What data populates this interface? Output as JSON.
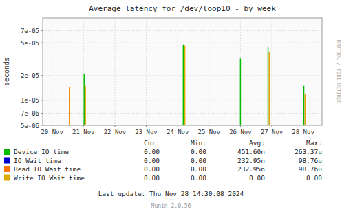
{
  "chart_data": {
    "type": "stem",
    "title": "Average latency for /dev/loop10 - by week",
    "ylabel": "seconds",
    "log": "y",
    "grid": true,
    "xlim": [
      -0.3,
      8.6
    ],
    "xticks": [
      {
        "value": 0,
        "label": "20 Nov"
      },
      {
        "value": 1,
        "label": "21 Nov"
      },
      {
        "value": 2,
        "label": "22 Nov"
      },
      {
        "value": 3,
        "label": "23 Nov"
      },
      {
        "value": 4,
        "label": "24 Nov"
      },
      {
        "value": 5,
        "label": "25 Nov"
      },
      {
        "value": 6,
        "label": "26 Nov"
      },
      {
        "value": 7,
        "label": "27 Nov"
      },
      {
        "value": 8,
        "label": "28 Nov"
      }
    ],
    "ylim": [
      5e-06,
      0.0001
    ],
    "yticks": [
      {
        "value": 5e-06,
        "label": "5e-06"
      },
      {
        "value": 7e-06,
        "label": "7e-06"
      },
      {
        "value": 1e-05,
        "label": "1e-05"
      },
      {
        "value": 2e-05,
        "label": "2e-05"
      },
      {
        "value": 5e-05,
        "label": "5e-05"
      },
      {
        "value": 7e-05,
        "label": "7e-05"
      }
    ],
    "stats_headers": [
      "Cur:",
      "Min:",
      "Avg:",
      "Max:"
    ],
    "series": [
      {
        "name": "Device IO time",
        "color": "#00bb00",
        "x": [
          1.02,
          4.18,
          6.0,
          6.88,
          8.02
        ],
        "values": [
          2.1e-05,
          4.75e-05,
          3.2e-05,
          4.4e-05,
          1.5e-05
        ],
        "stats": [
          "0.00",
          "0.00",
          "451.60n",
          "263.37u"
        ]
      },
      {
        "name": "IO Wait time",
        "color": "#0000cc",
        "x": [],
        "values": [],
        "stats": [
          "0.00",
          "0.00",
          "232.95n",
          "98.76u"
        ]
      },
      {
        "name": "Read IO Wait time",
        "color": "#ff7700",
        "x": [
          0.55,
          1.05,
          4.22,
          6.92,
          8.06
        ],
        "values": [
          1.45e-05,
          1.5e-05,
          4.6e-05,
          3.85e-05,
          1.2e-05
        ],
        "stats": [
          "0.00",
          "0.00",
          "232.95n",
          "98.76u"
        ]
      },
      {
        "name": "Write IO Wait time",
        "color": "#ddaa00",
        "x": [
          0.56,
          1.06,
          4.23,
          6.93,
          8.07
        ],
        "values": [
          1.42e-05,
          1.48e-05,
          4.55e-05,
          3.8e-05,
          1.18e-05
        ],
        "stats": [
          "0.00",
          "0.00",
          "0.00",
          "0.00"
        ]
      }
    ],
    "footer": "Last update: Thu Nov 28 14:30:08 2024",
    "credit": "Munin 2.0.56",
    "side_label": "RRDTOOL / TOBI OETIKER"
  }
}
